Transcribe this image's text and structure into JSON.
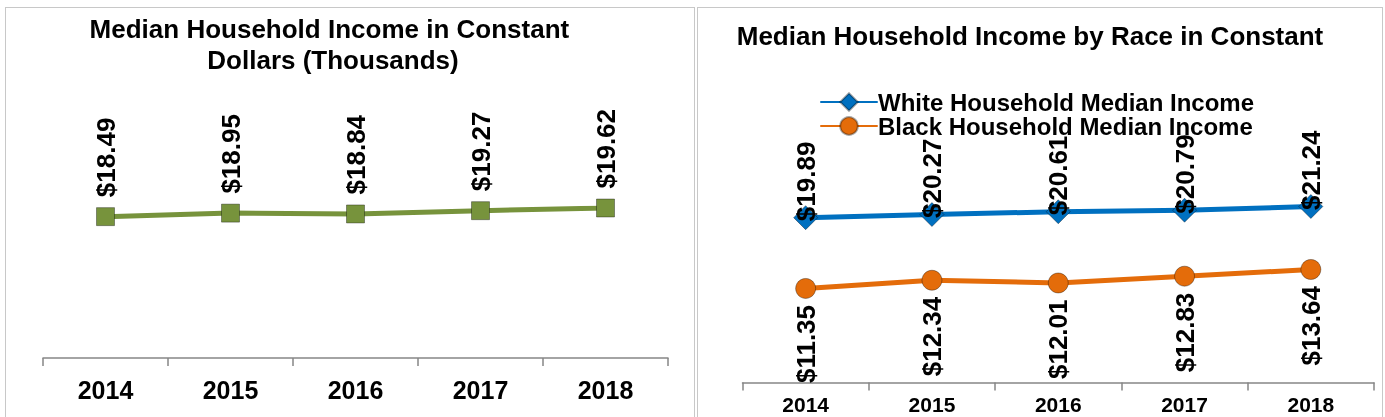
{
  "chart_data": [
    {
      "type": "line",
      "title": "Median Household Income in Constant Dollars (Thousands)",
      "categories": [
        "2014",
        "2015",
        "2016",
        "2017",
        "2018"
      ],
      "series": [
        {
          "color": "#77933c",
          "values": [
            18.49,
            18.95,
            18.84,
            19.27,
            19.62
          ],
          "value_labels": [
            "$18.49",
            "$18.95",
            "$18.84",
            "$19.27",
            "$19.62"
          ]
        }
      ],
      "tick_labels": "x",
      "marker": "square",
      "line_style": "solid"
    },
    {
      "type": "line",
      "title": "Median Household Income by Race in Constant",
      "categories": [
        "2014",
        "2015",
        "2016",
        "2017",
        "2018"
      ],
      "series": [
        {
          "name": "White Household Median Income",
          "color": "#0070c0",
          "marker": "diamond",
          "values": [
            19.89,
            20.27,
            20.61,
            20.79,
            21.24
          ],
          "value_labels": [
            "$19.89",
            "$20.27",
            "$20.61",
            "$20.79",
            "$21.24"
          ]
        },
        {
          "name": "Black Household Median Income",
          "color": "#e46c0a",
          "marker": "circle",
          "values": [
            11.35,
            12.34,
            12.01,
            12.83,
            13.64
          ],
          "value_labels": [
            "$11.35",
            "$12.34",
            "$12.01",
            "$12.83",
            "$13.64"
          ]
        }
      ],
      "tick_labels": "x",
      "legend": "top",
      "line_style": "solid"
    }
  ]
}
